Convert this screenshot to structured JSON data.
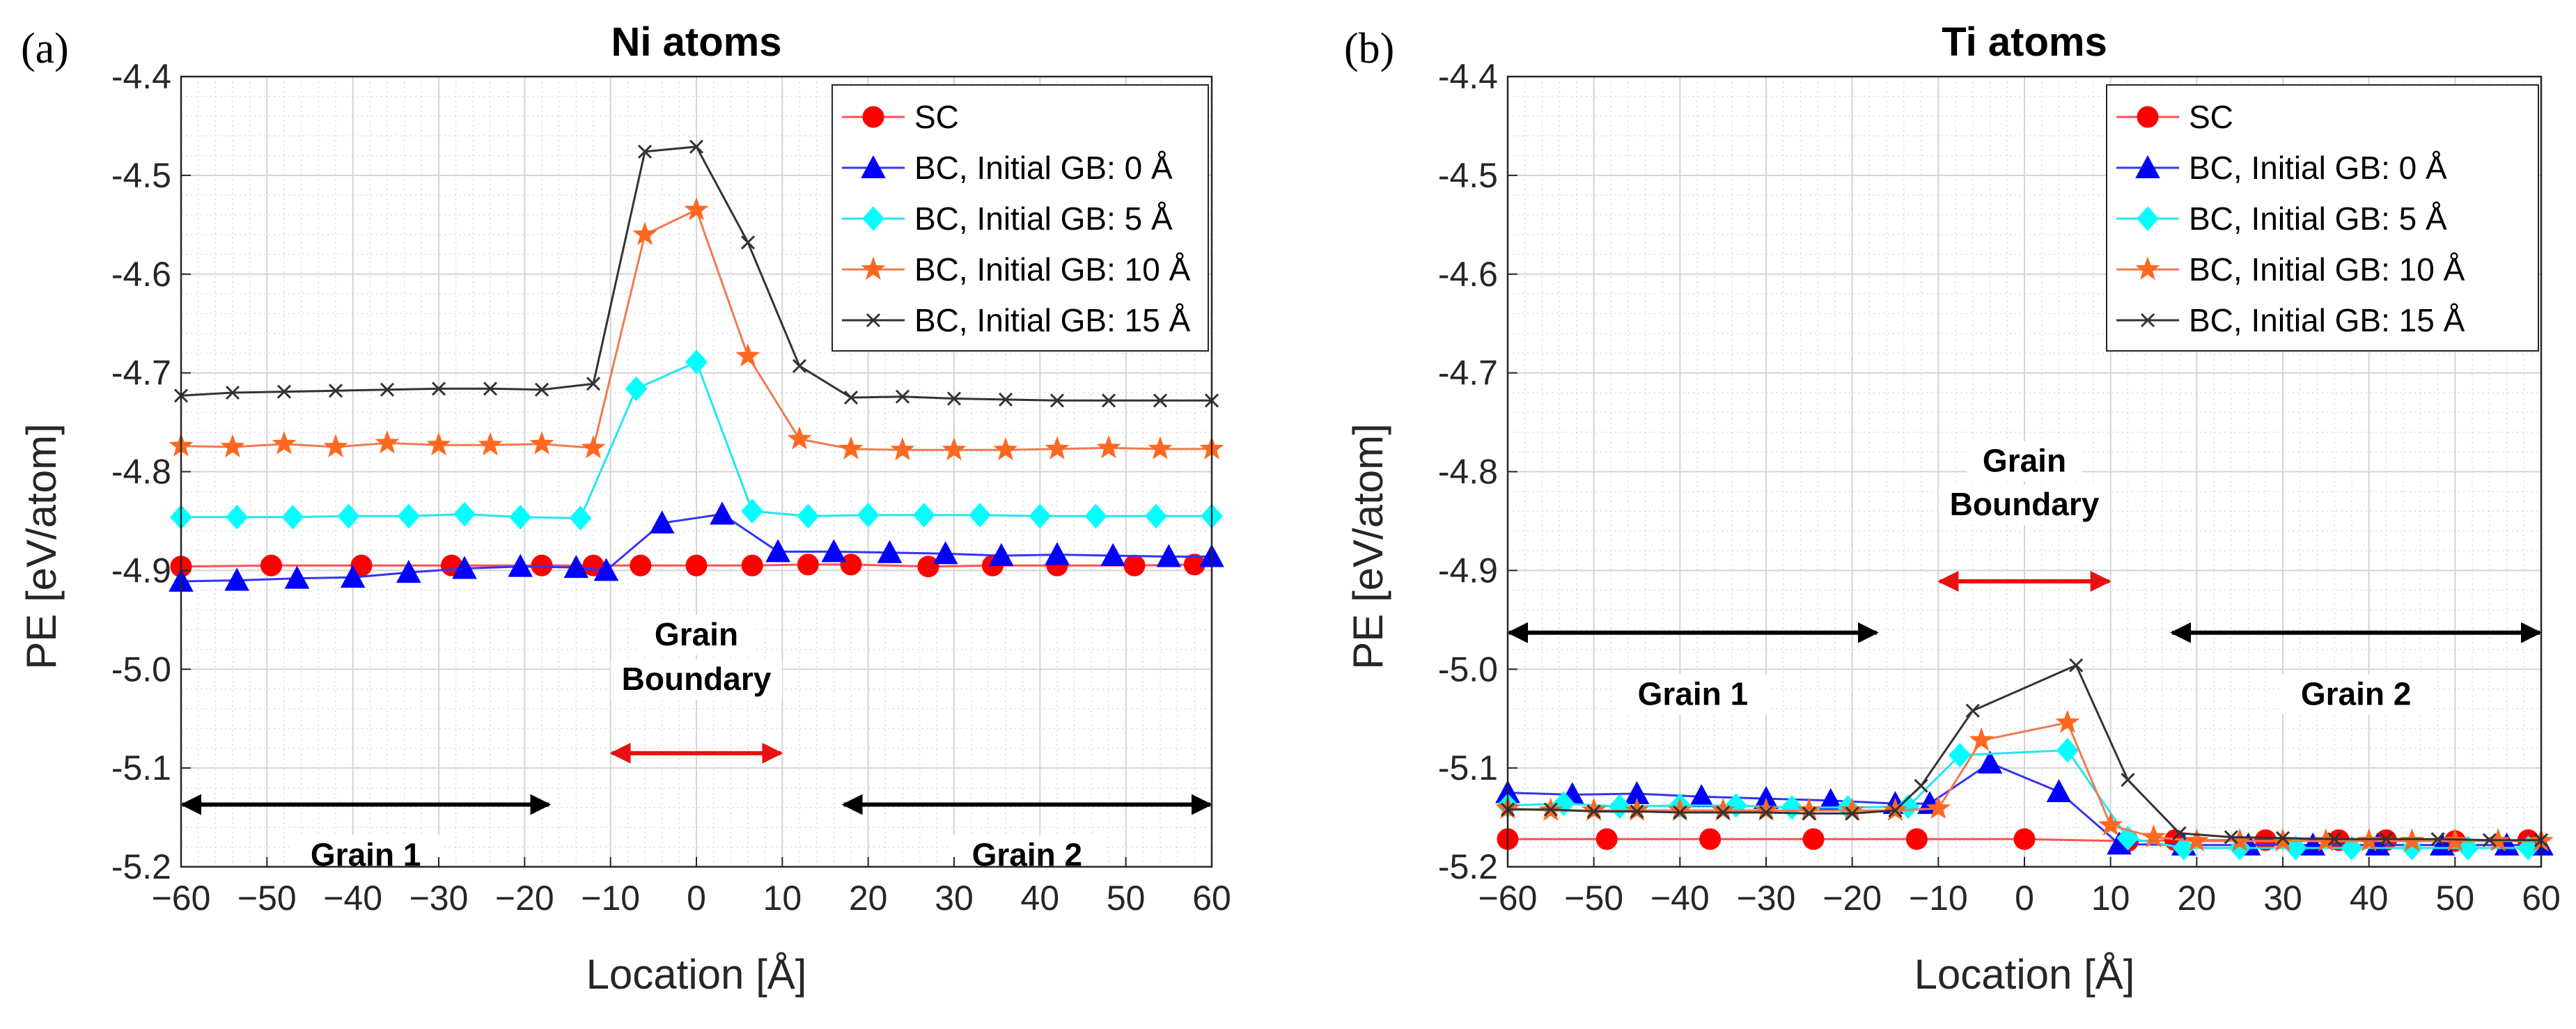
{
  "figure": {
    "panel_labels": [
      "(a)",
      "(b)"
    ]
  },
  "colors": {
    "SC": "#ff0000",
    "BC0": "#0000ff",
    "BC5": "#00ffff",
    "BC10": "#ff6820",
    "BC15": "#333333",
    "SC_line": "#ff5050",
    "BC0_line": "#3333ff",
    "BC5_line": "#22e6f0",
    "BC10_line": "#f07a50",
    "BC15_line": "#333333",
    "grain_arrow": "#000000",
    "gb_arrow": "#e81010"
  },
  "chart_data": [
    {
      "type": "line",
      "title": "Ni atoms",
      "xlabel": "Location [Å]",
      "ylabel": "PE [eV/atom]",
      "xlim": [
        -60,
        60
      ],
      "ylim": [
        -5.2,
        -4.4
      ],
      "xticks": [
        -60,
        -50,
        -40,
        -30,
        -20,
        -10,
        0,
        10,
        20,
        30,
        40,
        50,
        60
      ],
      "yticks": [
        -5.2,
        -5.1,
        -5.0,
        -4.9,
        -4.8,
        -4.7,
        -4.6,
        -4.5,
        -4.4
      ],
      "xtick_labels": [
        "−60",
        "−50",
        "−40",
        "−30",
        "−20",
        "−10",
        "0",
        "10",
        "20",
        "30",
        "40",
        "50",
        "60"
      ],
      "ytick_labels": [
        "-5.2",
        "-5.1",
        "-5.0",
        "-4.9",
        "-4.8",
        "-4.7",
        "-4.6",
        "-4.5",
        "-4.4"
      ],
      "grid": true,
      "legend_position": "top-right",
      "series": [
        {
          "name": "SC",
          "key": "SC",
          "marker": "circle",
          "x": [
            -60,
            -49.5,
            -39,
            -28.5,
            -18,
            -12,
            -6.5,
            0,
            6.5,
            13,
            18,
            27,
            34.5,
            42,
            51,
            58
          ],
          "y": [
            -4.896,
            -4.895,
            -4.895,
            -4.895,
            -4.895,
            -4.895,
            -4.895,
            -4.895,
            -4.895,
            -4.894,
            -4.894,
            -4.896,
            -4.895,
            -4.895,
            -4.895,
            -4.894
          ]
        },
        {
          "name": "BC, Initial GB: 0 Å",
          "key": "BC0",
          "marker": "triangle",
          "x": [
            -60,
            -53.5,
            -46.5,
            -40,
            -33.5,
            -27,
            -20.5,
            -14,
            -10.5,
            -4,
            3,
            9.5,
            16,
            22.5,
            29,
            35.5,
            42,
            48.5,
            55,
            60
          ],
          "y": [
            -4.911,
            -4.91,
            -4.908,
            -4.907,
            -4.902,
            -4.898,
            -4.896,
            -4.897,
            -4.9,
            -4.852,
            -4.843,
            -4.881,
            -4.881,
            -4.882,
            -4.883,
            -4.885,
            -4.884,
            -4.885,
            -4.886,
            -4.886
          ]
        },
        {
          "name": "BC, Initial GB: 5 Å",
          "key": "BC5",
          "marker": "diamond",
          "x": [
            -60,
            -53.5,
            -47,
            -40.5,
            -33.5,
            -27,
            -20.5,
            -13.5,
            -7,
            0,
            6.5,
            13,
            20,
            26.5,
            33,
            40,
            46.5,
            53.5,
            60
          ],
          "y": [
            -4.846,
            -4.846,
            -4.846,
            -4.845,
            -4.845,
            -4.843,
            -4.846,
            -4.847,
            -4.716,
            -4.689,
            -4.84,
            -4.845,
            -4.844,
            -4.844,
            -4.844,
            -4.845,
            -4.845,
            -4.845,
            -4.845
          ]
        },
        {
          "name": "BC, Initial GB: 10 Å",
          "key": "BC10",
          "marker": "star",
          "x": [
            -60,
            -54,
            -48,
            -42,
            -36,
            -30,
            -24,
            -18,
            -12,
            -6,
            0,
            6,
            12,
            18,
            24,
            30,
            36,
            42,
            48,
            54,
            60
          ],
          "y": [
            -4.774,
            -4.775,
            -4.772,
            -4.775,
            -4.771,
            -4.773,
            -4.773,
            -4.772,
            -4.776,
            -4.56,
            -4.535,
            -4.683,
            -4.767,
            -4.777,
            -4.778,
            -4.778,
            -4.778,
            -4.777,
            -4.776,
            -4.777,
            -4.777
          ]
        },
        {
          "name": "BC, Initial GB: 15 Å",
          "key": "BC15",
          "marker": "x",
          "x": [
            -60,
            -54,
            -48,
            -42,
            -36,
            -30,
            -24,
            -18,
            -12,
            -6,
            0,
            6,
            12,
            18,
            24,
            30,
            36,
            42,
            48,
            54,
            60
          ],
          "y": [
            -4.723,
            -4.72,
            -4.719,
            -4.718,
            -4.717,
            -4.716,
            -4.716,
            -4.717,
            -4.711,
            -4.476,
            -4.471,
            -4.568,
            -4.693,
            -4.725,
            -4.724,
            -4.726,
            -4.727,
            -4.728,
            -4.728,
            -4.728,
            -4.728
          ]
        }
      ],
      "annotations": [
        {
          "text_lines": [
            "Grain",
            "Boundary"
          ],
          "arrow_x": [
            -10,
            10
          ],
          "arrow_y": -5.085,
          "label_y": [
            -4.976,
            -5.021
          ],
          "color_key": "gb_arrow"
        },
        {
          "text_lines": [
            "Grain 1"
          ],
          "arrow_x": [
            -60,
            -17
          ],
          "arrow_y": -5.137,
          "label_y": [
            -5.199
          ],
          "color_key": "grain_arrow"
        },
        {
          "text_lines": [
            "Grain 2"
          ],
          "arrow_x": [
            17,
            60
          ],
          "arrow_y": -5.137,
          "label_y": [
            -5.199
          ],
          "color_key": "grain_arrow"
        }
      ]
    },
    {
      "type": "line",
      "title": "Ti atoms",
      "xlabel": "Location [Å]",
      "ylabel": "PE [eV/atom]",
      "xlim": [
        -60,
        60
      ],
      "ylim": [
        -5.2,
        -4.4
      ],
      "xticks": [
        -60,
        -50,
        -40,
        -30,
        -20,
        -10,
        0,
        10,
        20,
        30,
        40,
        50,
        60
      ],
      "yticks": [
        -5.2,
        -5.1,
        -5.0,
        -4.9,
        -4.8,
        -4.7,
        -4.6,
        -4.5,
        -4.4
      ],
      "xtick_labels": [
        "−60",
        "−50",
        "−40",
        "−30",
        "−20",
        "−10",
        "0",
        "10",
        "20",
        "30",
        "40",
        "50",
        "60"
      ],
      "ytick_labels": [
        "-5.2",
        "-5.1",
        "-5.0",
        "-4.9",
        "-4.8",
        "-4.7",
        "-4.6",
        "-4.5",
        "-4.4"
      ],
      "grid": true,
      "legend_position": "top-right",
      "series": [
        {
          "name": "SC",
          "key": "SC",
          "marker": "circle",
          "x": [
            -60,
            -48.5,
            -36.5,
            -24.5,
            -12.5,
            0,
            12,
            17.5,
            28,
            36.5,
            42,
            50,
            58.5
          ],
          "y": [
            -5.172,
            -5.172,
            -5.172,
            -5.172,
            -5.172,
            -5.172,
            -5.174,
            -5.173,
            -5.173,
            -5.173,
            -5.173,
            -5.174,
            -5.173
          ]
        },
        {
          "name": "BC, Initial GB: 0 Å",
          "key": "BC0",
          "marker": "triangle",
          "x": [
            -60,
            -52.5,
            -45,
            -37.5,
            -30,
            -22.5,
            -15,
            -11,
            -4,
            4,
            11,
            18.5,
            26,
            33.5,
            41,
            48.5,
            56,
            60
          ],
          "y": [
            -5.125,
            -5.127,
            -5.126,
            -5.129,
            -5.131,
            -5.133,
            -5.136,
            -5.136,
            -5.095,
            -5.124,
            -5.177,
            -5.178,
            -5.178,
            -5.178,
            -5.178,
            -5.178,
            -5.178,
            -5.178
          ]
        },
        {
          "name": "BC, Initial GB: 5 Å",
          "key": "BC5",
          "marker": "diamond",
          "x": [
            -60,
            -53.5,
            -47,
            -40,
            -33.5,
            -27,
            -20.5,
            -13.5,
            -7.5,
            5,
            12,
            18.5,
            25,
            31.5,
            38,
            45,
            51.5,
            58.5
          ],
          "y": [
            -5.138,
            -5.136,
            -5.139,
            -5.138,
            -5.138,
            -5.14,
            -5.14,
            -5.139,
            -5.087,
            -5.082,
            -5.171,
            -5.181,
            -5.181,
            -5.181,
            -5.181,
            -5.181,
            -5.181,
            -5.181
          ]
        },
        {
          "name": "BC, Initial GB: 10 Å",
          "key": "BC10",
          "marker": "star",
          "x": [
            -60,
            -55,
            -50,
            -45,
            -40,
            -35,
            -30,
            -25,
            -20,
            -15,
            -10,
            -5,
            5,
            10,
            15,
            20,
            25,
            30,
            35,
            40,
            45,
            50,
            55,
            60
          ],
          "y": [
            -5.141,
            -5.143,
            -5.143,
            -5.143,
            -5.143,
            -5.143,
            -5.143,
            -5.143,
            -5.143,
            -5.143,
            -5.141,
            -5.072,
            -5.054,
            -5.158,
            -5.17,
            -5.174,
            -5.174,
            -5.174,
            -5.174,
            -5.174,
            -5.174,
            -5.174,
            -5.174,
            -5.174
          ]
        },
        {
          "name": "BC, Initial GB: 15 Å",
          "key": "BC15",
          "marker": "x",
          "x": [
            -60,
            -55,
            -50,
            -45,
            -40,
            -35,
            -30,
            -25,
            -20,
            -15,
            -12,
            -6,
            6,
            12,
            18,
            24,
            30,
            36,
            42,
            48,
            54,
            60
          ],
          "y": [
            -5.142,
            -5.142,
            -5.144,
            -5.144,
            -5.145,
            -5.145,
            -5.145,
            -5.146,
            -5.146,
            -5.143,
            -5.118,
            -5.042,
            -4.996,
            -5.112,
            -5.166,
            -5.17,
            -5.171,
            -5.172,
            -5.172,
            -5.172,
            -5.173,
            -5.173
          ]
        }
      ],
      "annotations": [
        {
          "text_lines": [
            "Grain",
            "Boundary"
          ],
          "arrow_x": [
            -10,
            10
          ],
          "arrow_y": -4.911,
          "label_y": [
            -4.8,
            -4.844
          ],
          "color_key": "gb_arrow"
        },
        {
          "text_lines": [
            "Grain 1"
          ],
          "arrow_x": [
            -60,
            -17
          ],
          "arrow_y": -4.963,
          "label_y": [
            -5.036
          ],
          "color_key": "grain_arrow"
        },
        {
          "text_lines": [
            "Grain 2"
          ],
          "arrow_x": [
            17,
            60
          ],
          "arrow_y": -4.963,
          "label_y": [
            -5.036
          ],
          "color_key": "grain_arrow"
        }
      ]
    }
  ]
}
